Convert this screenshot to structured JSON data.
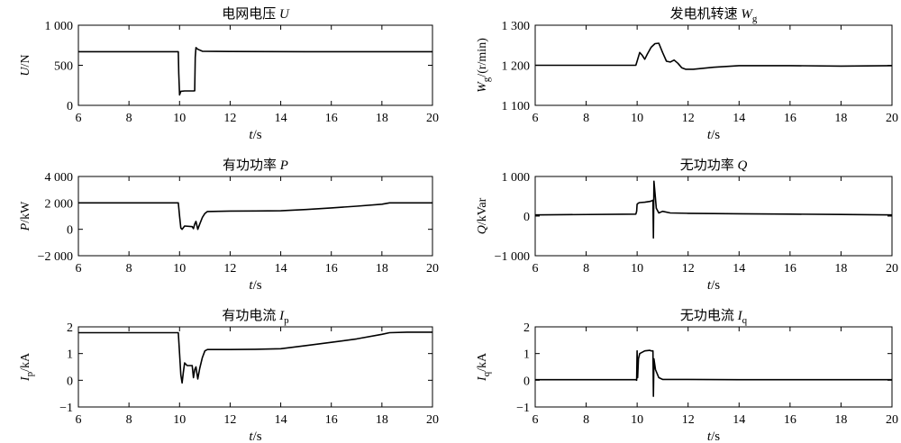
{
  "chart_data": [
    {
      "type": "line",
      "title": "电网电压 U",
      "title_parts": {
        "text": "电网电压 ",
        "var": "U",
        "sub": ""
      },
      "ylabel": "U/N",
      "ylabel_parts": {
        "var": "U",
        "sub": "",
        "unit": "/N"
      },
      "xlabel": "t/s",
      "xlim": [
        6,
        20
      ],
      "ylim": [
        0,
        1000
      ],
      "xticks": [
        6,
        8,
        10,
        12,
        14,
        16,
        18,
        20
      ],
      "yticks": [
        0,
        500,
        1000
      ],
      "ytick_labels": [
        "0",
        "500",
        "1 000"
      ],
      "x": [
        6,
        9.95,
        9.97,
        10.0,
        10.05,
        10.2,
        10.55,
        10.6,
        10.62,
        10.65,
        10.72,
        10.9,
        12,
        15,
        20
      ],
      "y": [
        670,
        670,
        400,
        130,
        175,
        180,
        180,
        182,
        600,
        720,
        700,
        675,
        672,
        670,
        670
      ]
    },
    {
      "type": "line",
      "title": "发电机转速 Wg",
      "title_parts": {
        "text": "发电机转速 ",
        "var": "W",
        "sub": "g"
      },
      "ylabel": "Wg/(r/min)",
      "ylabel_parts": {
        "var": "W",
        "sub": "g",
        "unit": "/(r/min)"
      },
      "xlabel": "t/s",
      "xlim": [
        6,
        20
      ],
      "ylim": [
        1100,
        1300
      ],
      "xticks": [
        6,
        8,
        10,
        12,
        14,
        16,
        18,
        20
      ],
      "yticks": [
        1100,
        1200,
        1300
      ],
      "ytick_labels": [
        "1 100",
        "1 200",
        "1 300"
      ],
      "x": [
        6,
        9.95,
        10.0,
        10.1,
        10.2,
        10.3,
        10.4,
        10.55,
        10.7,
        10.85,
        11.0,
        11.15,
        11.3,
        11.45,
        11.6,
        11.75,
        11.9,
        12.2,
        13,
        14,
        16,
        18,
        20
      ],
      "y": [
        1200,
        1200,
        1210,
        1232,
        1225,
        1215,
        1228,
        1245,
        1254,
        1255,
        1232,
        1210,
        1208,
        1213,
        1205,
        1194,
        1190,
        1190,
        1195,
        1199,
        1199,
        1198,
        1199
      ]
    },
    {
      "type": "line",
      "title": "有功功率 P",
      "title_parts": {
        "text": "有功功率 ",
        "var": "P",
        "sub": ""
      },
      "ylabel": "P/kW",
      "ylabel_parts": {
        "var": "P",
        "sub": "",
        "unit": "/kW"
      },
      "xlabel": "t/s",
      "xlim": [
        6,
        20
      ],
      "ylim": [
        -2000,
        4000
      ],
      "xticks": [
        6,
        8,
        10,
        12,
        14,
        16,
        18,
        20
      ],
      "yticks": [
        -2000,
        0,
        2000,
        4000
      ],
      "ytick_labels": [
        "−2 000",
        "0",
        "2 000",
        "4 000"
      ],
      "x": [
        6,
        9.95,
        10.0,
        10.05,
        10.1,
        10.2,
        10.5,
        10.55,
        10.6,
        10.65,
        10.72,
        10.8,
        10.9,
        11.0,
        11.1,
        12,
        13,
        14,
        15,
        16,
        17,
        18,
        18.3,
        19,
        20
      ],
      "y": [
        2000,
        2000,
        1000,
        100,
        0,
        250,
        200,
        50,
        400,
        600,
        0,
        400,
        900,
        1200,
        1350,
        1380,
        1390,
        1400,
        1500,
        1620,
        1750,
        1900,
        2000,
        2000,
        2000
      ]
    },
    {
      "type": "line",
      "title": "无功功率 Q",
      "title_parts": {
        "text": "无功功率 ",
        "var": "Q",
        "sub": ""
      },
      "ylabel": "Q/kVar",
      "ylabel_parts": {
        "var": "Q",
        "sub": "",
        "unit": "/kVar"
      },
      "xlabel": "t/s",
      "xlim": [
        6,
        20
      ],
      "ylim": [
        -1000,
        1000
      ],
      "xticks": [
        6,
        8,
        10,
        12,
        14,
        16,
        18,
        20
      ],
      "yticks": [
        -1000,
        0,
        1000
      ],
      "ytick_labels": [
        "−1 000",
        "0",
        "1 000"
      ],
      "x": [
        6,
        9.95,
        9.98,
        10.0,
        10.05,
        10.1,
        10.3,
        10.5,
        10.55,
        10.62,
        10.64,
        10.66,
        10.7,
        10.75,
        10.85,
        11.0,
        11.3,
        12,
        14,
        16,
        18,
        20
      ],
      "y": [
        30,
        50,
        120,
        300,
        330,
        340,
        350,
        370,
        380,
        400,
        -550,
        880,
        600,
        200,
        80,
        120,
        80,
        70,
        60,
        50,
        40,
        30
      ]
    },
    {
      "type": "line",
      "title": "有功电流 Ip",
      "title_parts": {
        "text": "有功电流 ",
        "var": "I",
        "sub": "p"
      },
      "ylabel": "Ip/kA",
      "ylabel_parts": {
        "var": "I",
        "sub": "p",
        "unit": "/kA"
      },
      "xlabel": "t/s",
      "xlim": [
        6,
        20
      ],
      "ylim": [
        -1,
        2
      ],
      "xticks": [
        6,
        8,
        10,
        12,
        14,
        16,
        18,
        20
      ],
      "yticks": [
        -1,
        0,
        1,
        2
      ],
      "ytick_labels": [
        "−1",
        "0",
        "1",
        "2"
      ],
      "x": [
        6,
        9.95,
        10.0,
        10.05,
        10.1,
        10.15,
        10.2,
        10.3,
        10.5,
        10.55,
        10.6,
        10.65,
        10.72,
        10.8,
        10.9,
        11.0,
        11.1,
        12,
        13,
        14,
        15,
        16,
        17,
        18,
        18.3,
        19,
        20
      ],
      "y": [
        1.78,
        1.78,
        1.0,
        0.2,
        -0.1,
        0.3,
        0.65,
        0.55,
        0.55,
        0.1,
        0.4,
        0.5,
        0.05,
        0.45,
        0.85,
        1.1,
        1.15,
        1.15,
        1.16,
        1.18,
        1.3,
        1.42,
        1.55,
        1.72,
        1.78,
        1.8,
        1.8
      ]
    },
    {
      "type": "line",
      "title": "无功电流 Iq",
      "title_parts": {
        "text": "无功电流 ",
        "var": "I",
        "sub": "q"
      },
      "ylabel": "Iq/kA",
      "ylabel_parts": {
        "var": "I",
        "sub": "q",
        "unit": "/kA"
      },
      "xlabel": "t/s",
      "xlim": [
        6,
        20
      ],
      "ylim": [
        -1,
        2
      ],
      "xticks": [
        6,
        8,
        10,
        12,
        14,
        16,
        18,
        20
      ],
      "yticks": [
        -1,
        0,
        1,
        2
      ],
      "ytick_labels": [
        "−1",
        "0",
        "1",
        "2"
      ],
      "x": [
        6,
        9.95,
        9.98,
        10.0,
        10.02,
        10.05,
        10.1,
        10.3,
        10.5,
        10.55,
        10.62,
        10.64,
        10.66,
        10.72,
        10.85,
        11.0,
        11.3,
        12,
        14,
        16,
        18,
        20
      ],
      "y": [
        0.02,
        0.02,
        0.0,
        1.1,
        0.1,
        0.8,
        1.0,
        1.1,
        1.12,
        1.1,
        1.1,
        -0.6,
        0.8,
        0.4,
        0.1,
        0.03,
        0.03,
        0.03,
        0.02,
        0.02,
        0.02,
        0.02
      ]
    }
  ]
}
